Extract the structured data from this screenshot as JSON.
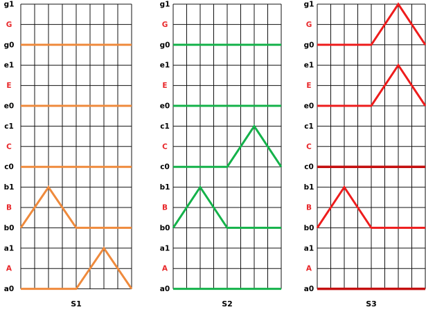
{
  "row_labels": [
    {
      "text": "g1",
      "color": "#000000"
    },
    {
      "text": "G",
      "color": "#e8272a"
    },
    {
      "text": "g0",
      "color": "#000000"
    },
    {
      "text": "e1",
      "color": "#000000"
    },
    {
      "text": "E",
      "color": "#e8272a"
    },
    {
      "text": "e0",
      "color": "#000000"
    },
    {
      "text": "c1",
      "color": "#000000"
    },
    {
      "text": "C",
      "color": "#e8272a"
    },
    {
      "text": "c0",
      "color": "#000000"
    },
    {
      "text": "b1",
      "color": "#000000"
    },
    {
      "text": "B",
      "color": "#e8272a"
    },
    {
      "text": "b0",
      "color": "#000000"
    },
    {
      "text": "a1",
      "color": "#000000"
    },
    {
      "text": "A",
      "color": "#e8272a"
    },
    {
      "text": "a0",
      "color": "#000000"
    }
  ],
  "panels": [
    {
      "name": "S1",
      "color": "#ef8a3c",
      "lines": [
        {
          "level": "g0"
        },
        {
          "level": "e0"
        },
        {
          "level": "c0"
        },
        {
          "level": "b0",
          "peak": {
            "start": 0,
            "apex": 1,
            "end": 2
          }
        },
        {
          "level": "a0",
          "peak": {
            "start": 2,
            "apex": 3,
            "end": 4
          }
        }
      ]
    },
    {
      "name": "S2",
      "color": "#14b24a",
      "lines": [
        {
          "level": "g0"
        },
        {
          "level": "e0"
        },
        {
          "level": "c0",
          "peak": {
            "start": 2,
            "apex": 3,
            "end": 4
          }
        },
        {
          "level": "b0",
          "peak": {
            "start": 0,
            "apex": 1,
            "end": 2
          }
        },
        {
          "level": "a0"
        }
      ]
    },
    {
      "name": "S3",
      "color": "#ee1c1c",
      "lines": [
        {
          "level": "g0",
          "peak": {
            "start": 2,
            "apex": 3,
            "end": 4
          }
        },
        {
          "level": "e0",
          "peak": {
            "start": 2,
            "apex": 3,
            "end": 4
          }
        },
        {
          "level": "c0",
          "dark": true
        },
        {
          "level": "b0",
          "peak": {
            "start": 0,
            "apex": 1,
            "end": 2
          }
        },
        {
          "level": "a0",
          "dark": true
        }
      ]
    }
  ]
}
